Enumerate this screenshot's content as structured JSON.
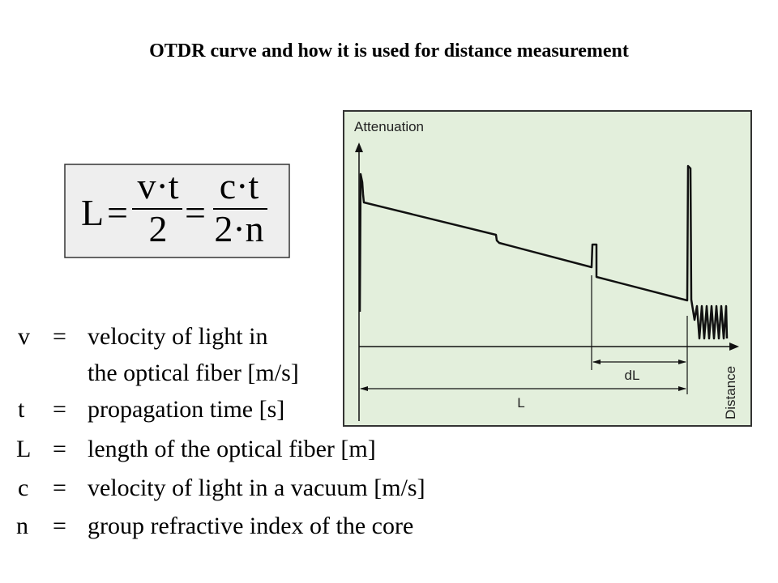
{
  "title": "OTDR curve and how it is used for distance measurement",
  "formula": {
    "lhs": "L",
    "eq1": "=",
    "num1": "v·t",
    "den1": "2",
    "eq2": "=",
    "num2": "c·t",
    "den2": "2·n"
  },
  "definitions": [
    {
      "symbol": "v",
      "eq": "=",
      "text": "velocity of light in"
    },
    {
      "text": "the optical fiber [m/s]"
    },
    {
      "symbol": "t",
      "eq": "=",
      "text": "propagation time [s]"
    },
    {
      "symbol": "L",
      "eq": "=",
      "text": "length of the optical fiber [m]"
    },
    {
      "symbol": "c",
      "eq": "=",
      "text": "velocity of light in a vacuum [m/s]"
    },
    {
      "symbol": "n",
      "eq": "=",
      "text": "group refractive index of the core"
    }
  ],
  "diagram": {
    "y_label": "Attenuation",
    "x_label": "Distance",
    "dl_label": "dL",
    "l_label": "L"
  }
}
